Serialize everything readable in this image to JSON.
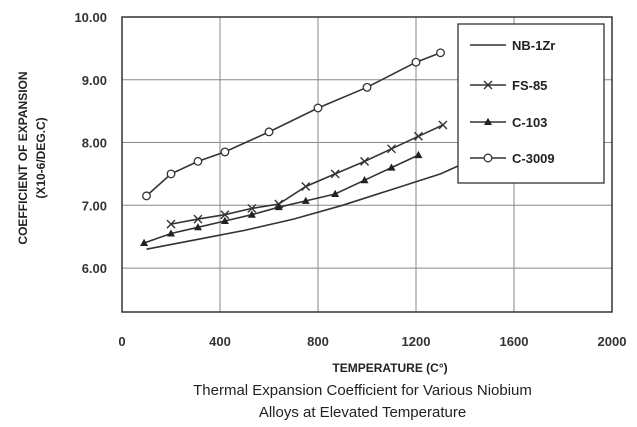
{
  "caption": {
    "line1": "Thermal Expansion Coefficient for Various Niobium",
    "line2": "Alloys at Elevated Temperature"
  },
  "chart_data": {
    "type": "line",
    "title": "",
    "xlabel": "TEMPERATURE (C°)",
    "ylabel": "COEFFICIENT OF EXPANSION",
    "ylabel_sub": "(X10-6/DEG.C)",
    "xlim": [
      0,
      2000
    ],
    "ylim": [
      5.3,
      10.0
    ],
    "x_ticks": [
      "0",
      "400",
      "800",
      "1200",
      "1600",
      "2000"
    ],
    "y_ticks": [
      "6.00",
      "7.00",
      "8.00",
      "9.00",
      "10.00"
    ],
    "grid": true,
    "legend_position": "top-right",
    "series": [
      {
        "name": "NB-1Zr",
        "marker": "none",
        "color": "#333333",
        "points": [
          [
            100,
            6.3
          ],
          [
            300,
            6.45
          ],
          [
            500,
            6.6
          ],
          [
            700,
            6.78
          ],
          [
            900,
            7.0
          ],
          [
            1100,
            7.25
          ],
          [
            1300,
            7.5
          ],
          [
            1500,
            7.85
          ]
        ]
      },
      {
        "name": "FS-85",
        "marker": "x",
        "color": "#333333",
        "points": [
          [
            200,
            6.7
          ],
          [
            310,
            6.78
          ],
          [
            420,
            6.85
          ],
          [
            530,
            6.95
          ],
          [
            640,
            7.02
          ],
          [
            750,
            7.3
          ],
          [
            870,
            7.5
          ],
          [
            990,
            7.7
          ],
          [
            1100,
            7.9
          ],
          [
            1210,
            8.1
          ],
          [
            1310,
            8.28
          ]
        ]
      },
      {
        "name": "C-103",
        "marker": "triangle",
        "color": "#333333",
        "points": [
          [
            90,
            6.4
          ],
          [
            200,
            6.55
          ],
          [
            310,
            6.65
          ],
          [
            420,
            6.75
          ],
          [
            530,
            6.85
          ],
          [
            640,
            6.97
          ],
          [
            750,
            7.07
          ],
          [
            870,
            7.18
          ],
          [
            990,
            7.4
          ],
          [
            1100,
            7.6
          ],
          [
            1210,
            7.8
          ]
        ]
      },
      {
        "name": "C-3009",
        "marker": "circle",
        "color": "#333333",
        "points": [
          [
            100,
            7.15
          ],
          [
            200,
            7.5
          ],
          [
            310,
            7.7
          ],
          [
            420,
            7.85
          ],
          [
            600,
            8.17
          ],
          [
            800,
            8.55
          ],
          [
            1000,
            8.88
          ],
          [
            1200,
            9.28
          ],
          [
            1300,
            9.43
          ]
        ]
      }
    ]
  }
}
